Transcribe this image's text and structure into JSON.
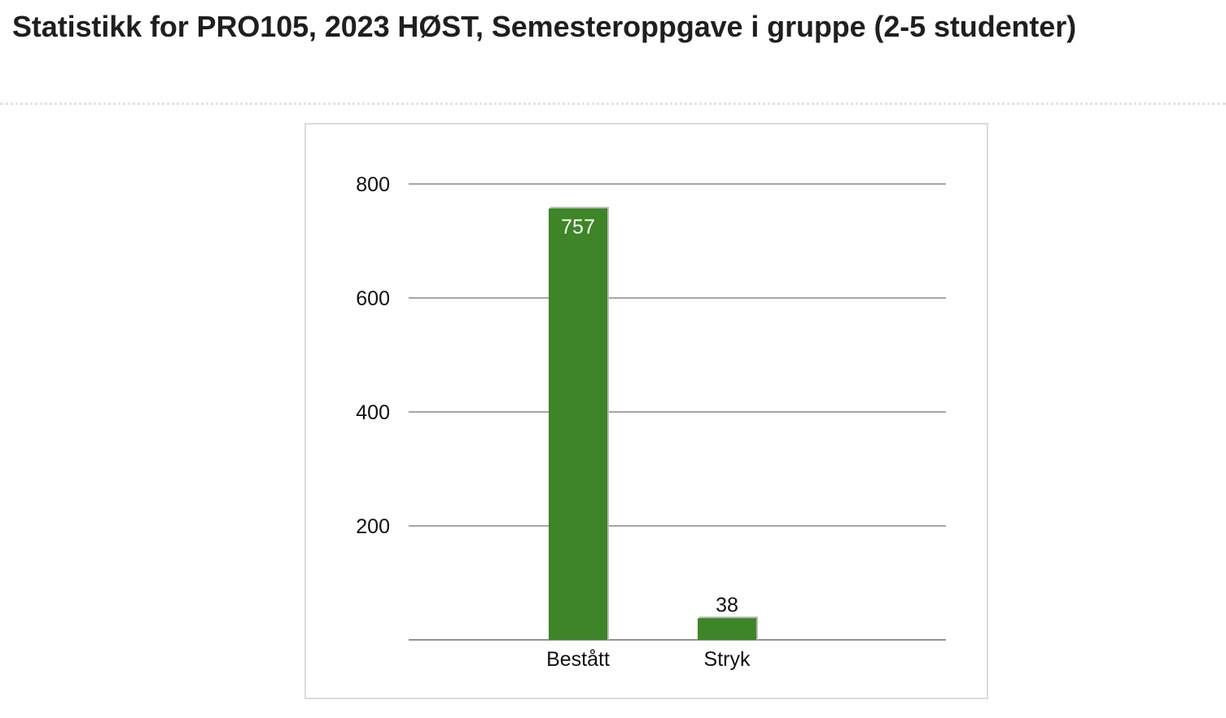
{
  "page": {
    "title": "Statistikk for PRO105, 2023 HØST, Semesteroppgave i gruppe (2-5 studenter)"
  },
  "chart_data": {
    "type": "bar",
    "categories": [
      "Bestått",
      "Stryk"
    ],
    "values": [
      757,
      38
    ],
    "title": "",
    "xlabel": "",
    "ylabel": "",
    "ylim": [
      0,
      800
    ],
    "yticks": [
      200,
      400,
      600,
      800
    ],
    "grid": true,
    "legend": "none",
    "bar_color": "#3d8527",
    "bar_shadow_color": "#b9b9b9",
    "grid_color": "#6f6f6f"
  }
}
